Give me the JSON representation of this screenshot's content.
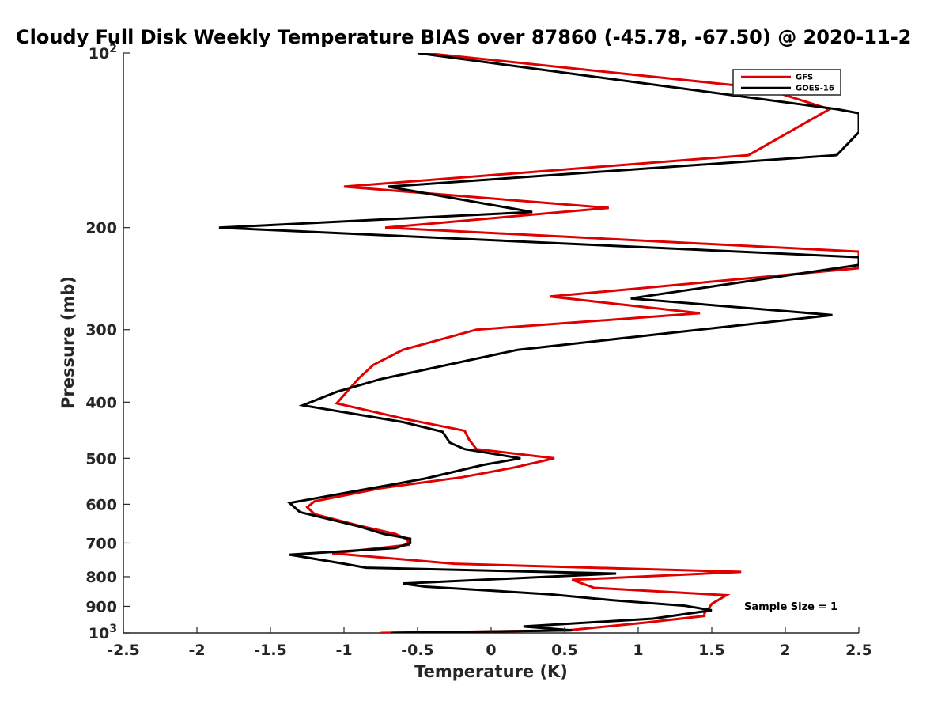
{
  "chart_data": {
    "type": "line",
    "title": "Cloudy Full Disk Weekly Temperature BIAS over 87860 (-45.78, -67.50) @ 2020-11-2",
    "xlabel": "Temperature (K)",
    "ylabel": "Pressure (mb)",
    "xlim": [
      -2.5,
      2.5
    ],
    "ylim": [
      100,
      1000
    ],
    "y_scale": "log",
    "y_reversed": true,
    "x_ticks": [
      -2.5,
      -2,
      -1.5,
      -1,
      -0.5,
      0,
      0.5,
      1,
      1.5,
      2,
      2.5
    ],
    "x_tick_labels": [
      "-2.5",
      "-2",
      "-1.5",
      "-1",
      "-0.5",
      "0",
      "0.5",
      "1",
      "1.5",
      "2",
      "2.5"
    ],
    "y_ticks": [
      100,
      200,
      300,
      400,
      500,
      600,
      700,
      800,
      900,
      1000
    ],
    "y_tick_labels": [
      {
        "base": "10",
        "sup": "2"
      },
      {
        "base": "200",
        "sup": ""
      },
      {
        "base": "300",
        "sup": ""
      },
      {
        "base": "400",
        "sup": ""
      },
      {
        "base": "500",
        "sup": ""
      },
      {
        "base": "600",
        "sup": ""
      },
      {
        "base": "700",
        "sup": ""
      },
      {
        "base": "800",
        "sup": ""
      },
      {
        "base": "900",
        "sup": ""
      },
      {
        "base": "10",
        "sup": "3"
      }
    ],
    "grid": false,
    "legend_position": "top-right",
    "annotation": "Sample Size = 1",
    "series": [
      {
        "name": "GFS",
        "color": "#e00000",
        "points": [
          [
            -0.45,
            100
          ],
          [
            1.85,
            115
          ],
          [
            2.3,
            125
          ],
          [
            1.75,
            150
          ],
          [
            -1.0,
            170
          ],
          [
            0.8,
            185
          ],
          [
            -0.72,
            200
          ],
          [
            2.5,
            220
          ],
          [
            2.5,
            235
          ],
          [
            0.4,
            263
          ],
          [
            1.42,
            281
          ],
          [
            -0.1,
            300
          ],
          [
            -0.6,
            325
          ],
          [
            -0.8,
            345
          ],
          [
            -0.9,
            364
          ],
          [
            -1.05,
            402
          ],
          [
            -0.58,
            428
          ],
          [
            -0.18,
            448
          ],
          [
            -0.15,
            464
          ],
          [
            -0.1,
            482
          ],
          [
            0.43,
            500
          ],
          [
            0.15,
            519
          ],
          [
            -0.2,
            539
          ],
          [
            -0.75,
            563
          ],
          [
            -1.2,
            593
          ],
          [
            -1.25,
            607
          ],
          [
            -1.2,
            624
          ],
          [
            -0.9,
            653
          ],
          [
            -0.65,
            675
          ],
          [
            -0.57,
            690
          ],
          [
            -0.56,
            705
          ],
          [
            -1.08,
            729
          ],
          [
            -0.25,
            760
          ],
          [
            1.7,
            785
          ],
          [
            0.55,
            810
          ],
          [
            0.7,
            836
          ],
          [
            1.6,
            861
          ],
          [
            1.5,
            891
          ],
          [
            1.48,
            907
          ],
          [
            1.45,
            925
          ],
          [
            1.45,
            935
          ],
          [
            1.05,
            960
          ],
          [
            0.52,
            990
          ],
          [
            -0.75,
            1000
          ]
        ]
      },
      {
        "name": "GOES-16",
        "color": "#000000",
        "points": [
          [
            -0.5,
            100
          ],
          [
            2.35,
            125
          ],
          [
            2.5,
            127
          ],
          [
            2.5,
            137
          ],
          [
            2.35,
            150
          ],
          [
            -0.7,
            170
          ],
          [
            0.28,
            188
          ],
          [
            -1.85,
            200
          ],
          [
            2.5,
            225
          ],
          [
            2.5,
            232
          ],
          [
            0.95,
            265
          ],
          [
            2.32,
            283
          ],
          [
            0.18,
            325
          ],
          [
            -0.75,
            365
          ],
          [
            -1.05,
            384
          ],
          [
            -1.28,
            405
          ],
          [
            -0.6,
            433
          ],
          [
            -0.33,
            450
          ],
          [
            -0.28,
            470
          ],
          [
            -0.18,
            482
          ],
          [
            0.2,
            500
          ],
          [
            -0.05,
            513
          ],
          [
            -0.45,
            542
          ],
          [
            -0.88,
            567
          ],
          [
            -1.37,
            597
          ],
          [
            -1.3,
            619
          ],
          [
            -0.9,
            655
          ],
          [
            -0.73,
            675
          ],
          [
            -0.55,
            688
          ],
          [
            -0.55,
            700
          ],
          [
            -0.65,
            714
          ],
          [
            -1.37,
            733
          ],
          [
            -1.0,
            760
          ],
          [
            -0.85,
            772
          ],
          [
            0.85,
            790
          ],
          [
            -0.6,
            822
          ],
          [
            -0.45,
            832
          ],
          [
            0.4,
            858
          ],
          [
            0.82,
            878
          ],
          [
            1.32,
            898
          ],
          [
            1.5,
            914
          ],
          [
            1.1,
            945
          ],
          [
            0.22,
            975
          ],
          [
            0.55,
            990
          ],
          [
            -0.68,
            1000
          ]
        ]
      }
    ]
  }
}
